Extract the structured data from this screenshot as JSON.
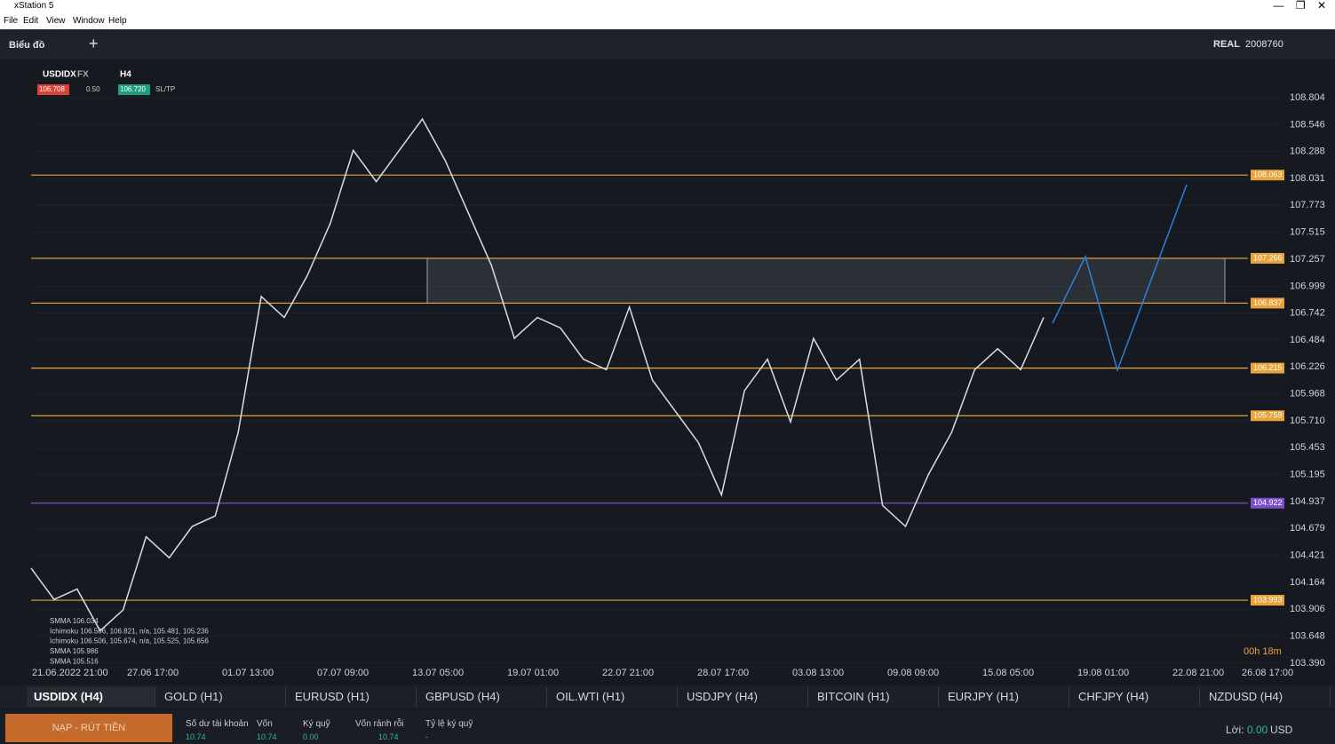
{
  "window": {
    "title": "xStation 5",
    "menu": [
      "File",
      "Edit",
      "View",
      "Window",
      "Help"
    ]
  },
  "toolbar": {
    "tab": "Biểu đồ",
    "mode": "REAL",
    "account": "2008760"
  },
  "chart": {
    "symbol": "USDIDX",
    "market": "FX",
    "interval": "H4",
    "sell": {
      "value": 106.708,
      "label": "106.708"
    },
    "spread": {
      "value": 0.5,
      "label": "0.50"
    },
    "buy": {
      "value": 106.72,
      "label": "106.720"
    },
    "sltp": "SL/TP",
    "ylim": [
      103.39,
      108.804
    ],
    "yticks": [
      108.804,
      108.546,
      108.288,
      108.031,
      107.773,
      107.515,
      107.257,
      106.999,
      106.742,
      106.484,
      106.226,
      105.968,
      {
        "value": 105.71,
        "label": "105.710"
      },
      105.453,
      105.195,
      104.937,
      104.679,
      104.421,
      104.164,
      103.906,
      103.648,
      {
        "value": 103.39,
        "label": "103.390"
      }
    ],
    "time_labels": [
      "21.06.2022 21:00",
      "27.06 17:00",
      "01.07 13:00",
      "07.07 09:00",
      "13.07 05:00",
      "19.07 01:00",
      "22.07 21:00",
      "28.07 17:00",
      "03.08 13:00",
      "09.08 09:00",
      "15.08 05:00",
      "19.08 01:00",
      "22.08 21:00",
      "26.08 17:00"
    ],
    "levels": [
      {
        "value": 108.063,
        "color": "#e8a33a"
      },
      {
        "value": 107.266,
        "color": "#e8a33a"
      },
      {
        "value": 106.837,
        "color": "#e8a33a"
      },
      {
        "value": 106.215,
        "color": "#e8a33a"
      },
      {
        "value": 105.759,
        "color": "#e8a33a"
      },
      {
        "value": 104.922,
        "color": "#7a4fc9"
      },
      {
        "value": 103.993,
        "color": "#e8a33a"
      }
    ],
    "price": {
      "color": "#d9dde3",
      "values": [
        104.3,
        104.0,
        104.1,
        103.7,
        103.9,
        104.6,
        104.4,
        104.7,
        104.8,
        105.6,
        106.9,
        106.7,
        107.1,
        107.6,
        108.3,
        108.0,
        108.3,
        108.6,
        108.2,
        107.7,
        107.2,
        106.5,
        106.7,
        106.6,
        106.3,
        106.2,
        106.8,
        106.1,
        105.8,
        105.5,
        105.0,
        106.0,
        106.3,
        105.7,
        106.5,
        106.1,
        106.3,
        104.9,
        104.7,
        105.2,
        105.6,
        106.2,
        106.4,
        106.2,
        106.7
      ]
    },
    "legend": [
      "SMMA 106.034",
      "Ichimoku 106.506, 106.821, n/a, 105.481, 105.236",
      "Ichimoku 106.506, 105.674, n/a, 105.525, 105.656",
      "SMMA 105.986",
      "SMMA 105.516"
    ],
    "timer": "00h 18m"
  },
  "tabs": [
    "USDIDX (H4)",
    "GOLD (H1)",
    "EURUSD (H1)",
    "GBPUSD (H4)",
    "OIL.WTI (H1)",
    "USDJPY (H4)",
    "BITCOIN (H1)",
    "EURJPY (H1)",
    "CHFJPY (H4)",
    "NZDUSD (H4)"
  ],
  "account": {
    "button": "NẠP - RÚT TIỀN",
    "fields": [
      {
        "label": "Số dư tài khoản",
        "value": "10.74"
      },
      {
        "label": "Vốn",
        "value": "10.74"
      },
      {
        "label": "Ký quỹ",
        "value": "0.00"
      },
      {
        "label": "Vốn rảnh rỗi",
        "value": "10.74"
      },
      {
        "label": "Tỷ lệ ký quỹ",
        "value": "-"
      }
    ],
    "profit_label": "Lời:",
    "profit": "0.00",
    "currency": "USD"
  }
}
